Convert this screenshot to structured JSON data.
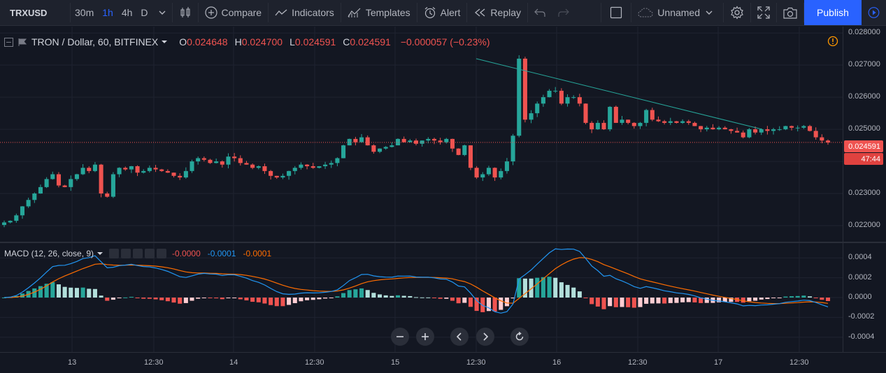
{
  "toolbar": {
    "symbol": "TRXUSD",
    "intervals": [
      "30m",
      "1h",
      "4h",
      "D"
    ],
    "active_interval": "1h",
    "compare_label": "Compare",
    "indicators_label": "Indicators",
    "templates_label": "Templates",
    "alert_label": "Alert",
    "replay_label": "Replay",
    "layout_name": "Unnamed",
    "publish_label": "Publish"
  },
  "legend": {
    "title": "TRON / Dollar, 60, BITFINEX",
    "o_key": "O",
    "o_val": "0.024648",
    "h_key": "H",
    "h_val": "0.024700",
    "l_key": "L",
    "l_val": "0.024591",
    "c_key": "C",
    "c_val": "0.024591",
    "change": "−0.000057 (−0.23%)"
  },
  "macd_legend": {
    "title": "MACD (12, 26, close, 9)",
    "hist": "-0.0000",
    "macd": "-0.0001",
    "signal": "-0.0001"
  },
  "price_axis": {
    "ticks": [
      "0.028000",
      "0.027000",
      "0.026000",
      "0.025000",
      "0.024000",
      "0.023000",
      "0.022000"
    ],
    "current_price": "0.024591",
    "countdown": "47:44"
  },
  "macd_axis": {
    "ticks": [
      "0.0004",
      "0.0002",
      "0.0000",
      "-0.0002",
      "-0.0004"
    ]
  },
  "time_axis": {
    "ticks": [
      "13",
      "12:30",
      "14",
      "12:30",
      "15",
      "12:30",
      "16",
      "12:30",
      "17",
      "12:30"
    ]
  },
  "colors": {
    "up": "#26a69a",
    "down": "#ef5350",
    "macd_line": "#2196f3",
    "signal_line": "#ff6d00",
    "hist_up_strong": "#26a69a",
    "hist_up_weak": "#b2dfdb",
    "hist_down_strong": "#ef5350",
    "hist_down_weak": "#ffcdd2",
    "trendline": "#26a69a"
  },
  "chart_data": {
    "type": "candlestick",
    "price_range": [
      0.0215,
      0.0282
    ],
    "trendline": [
      [
        0.0272,
        0.025
      ]
    ],
    "close_series": [
      0.0221,
      0.02215,
      0.02232,
      0.0226,
      0.0228,
      0.023,
      0.0232,
      0.02345,
      0.0236,
      0.02325,
      0.0232,
      0.02345,
      0.0236,
      0.0238,
      0.0237,
      0.0239,
      0.023,
      0.0229,
      0.0236,
      0.0238,
      0.02375,
      0.02385,
      0.02365,
      0.0237,
      0.0238,
      0.02375,
      0.0237,
      0.02365,
      0.02355,
      0.0235,
      0.0237,
      0.024,
      0.0241,
      0.02405,
      0.02395,
      0.024,
      0.0239,
      0.02415,
      0.0241,
      0.02395,
      0.0239,
      0.0238,
      0.02385,
      0.0237,
      0.02355,
      0.0235,
      0.02355,
      0.0237,
      0.0238,
      0.0239,
      0.02385,
      0.0238,
      0.02385,
      0.0239,
      0.02395,
      0.0241,
      0.0245,
      0.0247,
      0.0246,
      0.02475,
      0.0245,
      0.0243,
      0.0244,
      0.02445,
      0.0245,
      0.0247,
      0.0246,
      0.02465,
      0.02455,
      0.02465,
      0.0247,
      0.02465,
      0.0246,
      0.0247,
      0.0244,
      0.0242,
      0.0245,
      0.0238,
      0.0235,
      0.0236,
      0.0238,
      0.0235,
      0.0237,
      0.024,
      0.0248,
      0.0272,
      0.0253,
      0.0255,
      0.0258,
      0.026,
      0.0262,
      0.0262,
      0.0258,
      0.026,
      0.026,
      0.0258,
      0.0252,
      0.025,
      0.0252,
      0.025,
      0.0257,
      0.0252,
      0.0253,
      0.0252,
      0.0251,
      0.0252,
      0.0256,
      0.0253,
      0.02525,
      0.0252,
      0.02525,
      0.0252,
      0.02525,
      0.0252,
      0.0251,
      0.025,
      0.02505,
      0.025,
      0.02505,
      0.025,
      0.02495,
      0.0249,
      0.02475,
      0.025,
      0.0249,
      0.025,
      0.02495,
      0.025,
      0.025,
      0.0251,
      0.02505,
      0.02505,
      0.0251,
      0.02495,
      0.02475,
      0.02465,
      0.02459
    ]
  }
}
